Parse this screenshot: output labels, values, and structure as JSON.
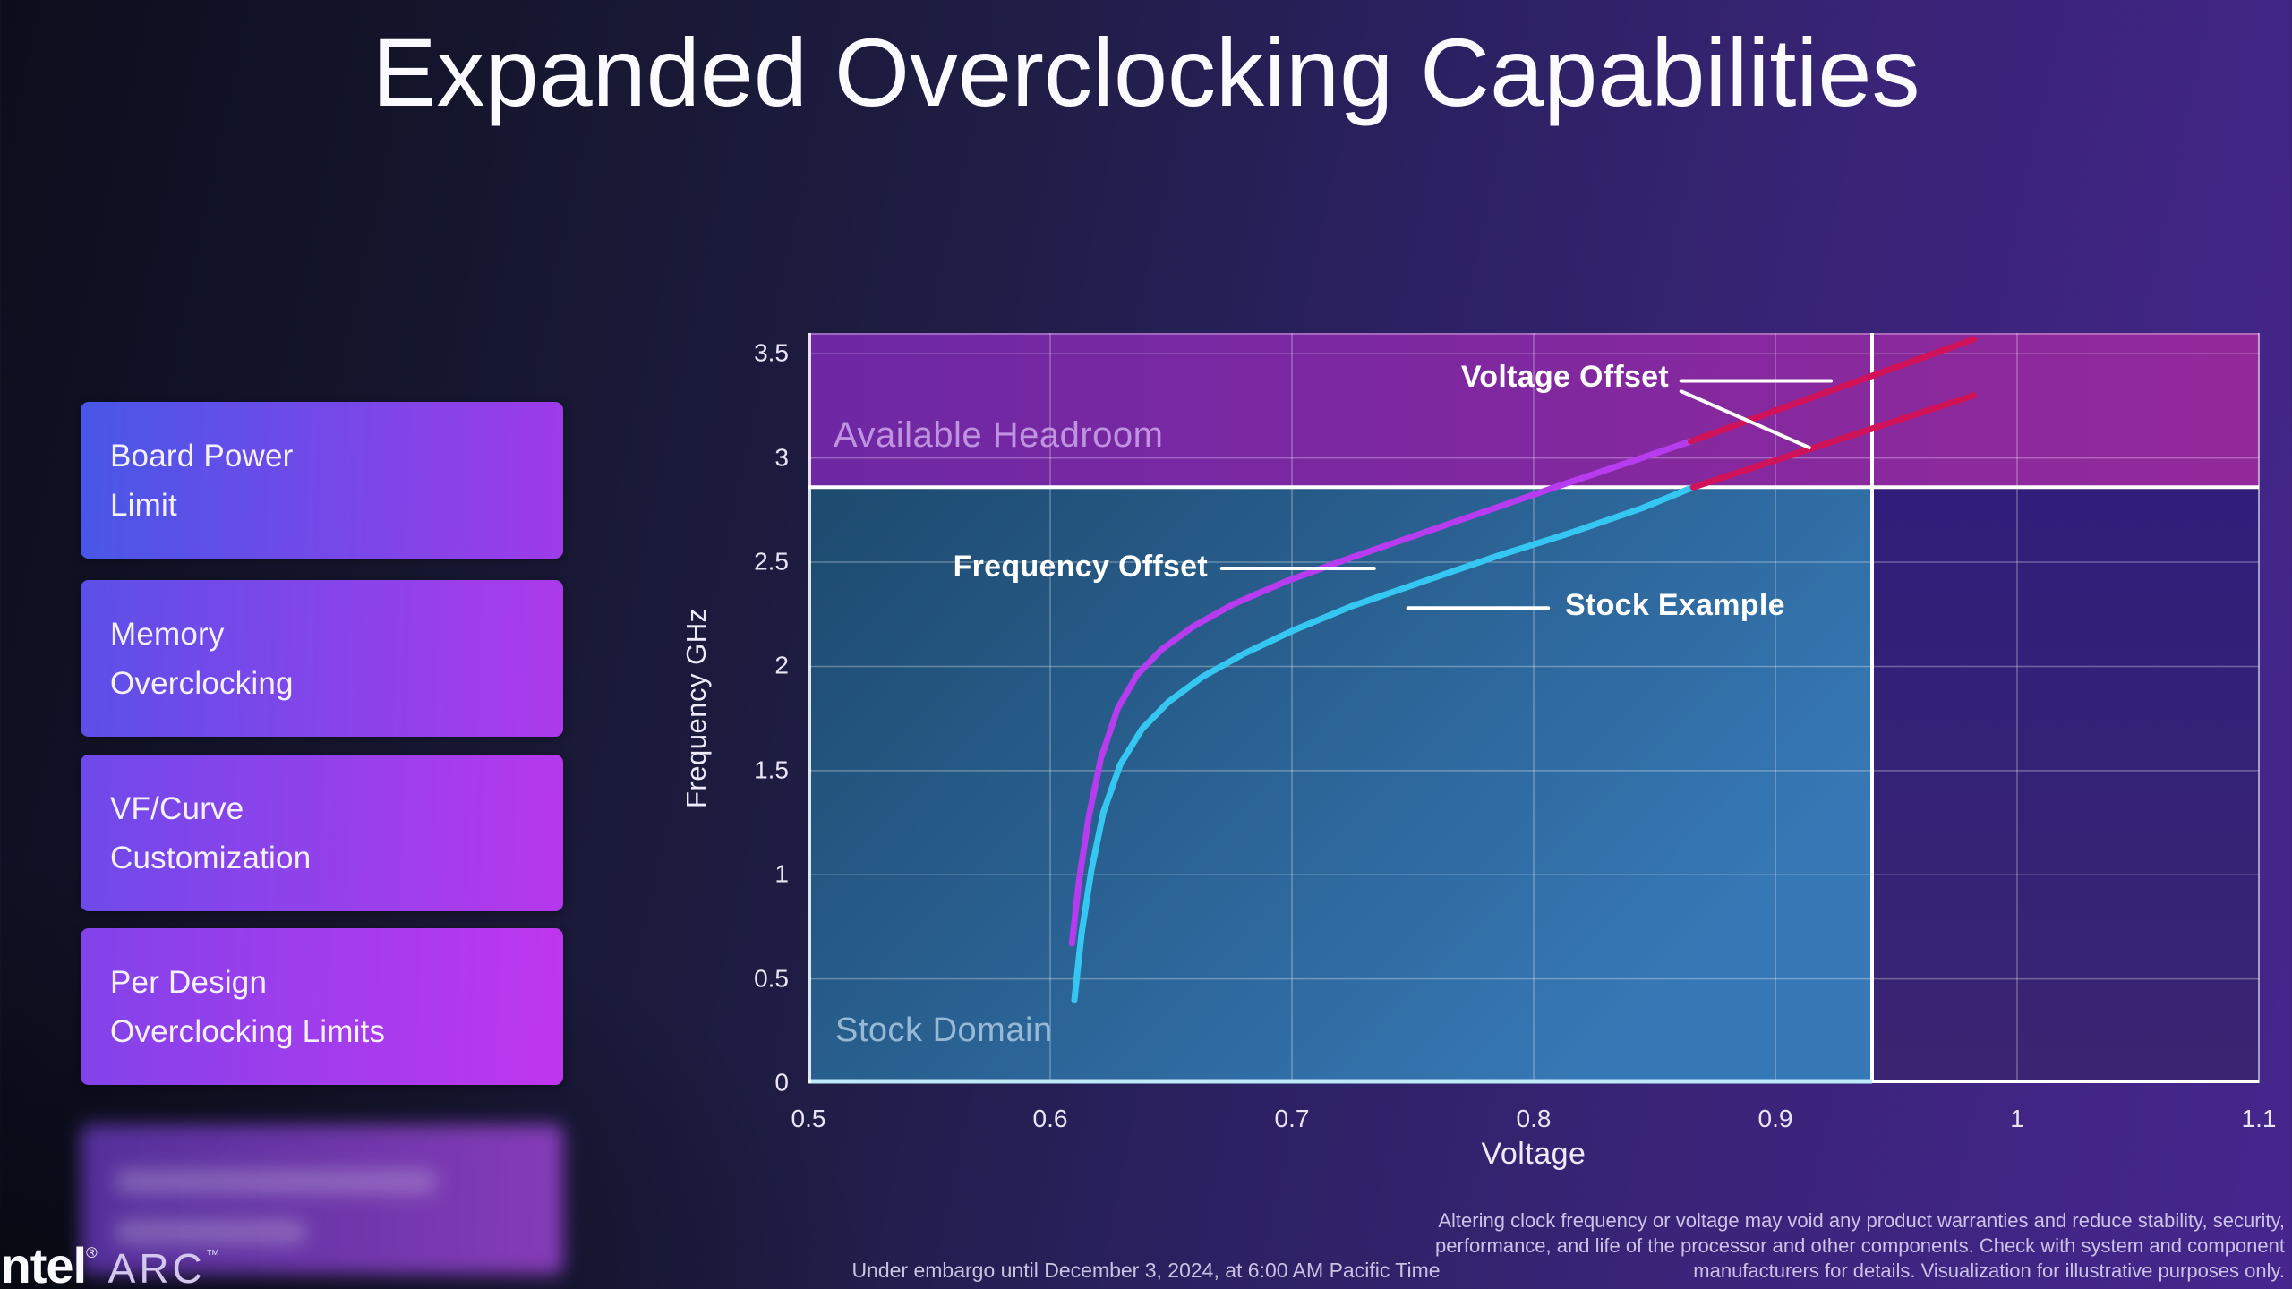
{
  "slide": {
    "title": "Expanded Overclocking Capabilities",
    "embargo_note": "Under embargo until December 3, 2024, at 6:00 AM Pacific Time",
    "disclaimer": "Altering clock frequency or voltage may void any product warranties and reduce stability, security,\nperformance, and life of the processor and other components.  Check with system and component\nmanufacturers for details. Visualization for illustrative purposes only.",
    "logo": {
      "brand": "intel",
      "reg": "®",
      "sub_brand": "ARC",
      "tm": "™"
    }
  },
  "sidebar": {
    "items": [
      {
        "label": "Board Power\nLimit"
      },
      {
        "label": "Memory\nOverclocking"
      },
      {
        "label": "VF/Curve\nCustomization"
      },
      {
        "label": "Per Design\nOverclocking Limits"
      }
    ]
  },
  "chart_data": {
    "type": "line",
    "title": "",
    "xlabel": "Voltage",
    "ylabel": "Frequency GHz",
    "x_range": [
      0.5,
      1.1
    ],
    "y_range": [
      0,
      3.6
    ],
    "x_ticks": [
      0.5,
      0.6,
      0.7,
      0.8,
      0.9,
      1,
      1.1
    ],
    "y_ticks": [
      0,
      0.5,
      1,
      1.5,
      2,
      2.5,
      3,
      3.5
    ],
    "grid": true,
    "legend_position": "none",
    "boundaries": {
      "stock_max_voltage": 0.94,
      "stock_max_frequency": 2.86
    },
    "region_labels": {
      "headroom": "Available Headroom",
      "stock": "Stock Domain"
    },
    "series": [
      {
        "name": "Stock Example",
        "color": "#35c7f2",
        "points": [
          [
            0.61,
            0.4
          ],
          [
            0.613,
            0.72
          ],
          [
            0.617,
            1.02
          ],
          [
            0.622,
            1.3
          ],
          [
            0.629,
            1.53
          ],
          [
            0.638,
            1.7
          ],
          [
            0.649,
            1.83
          ],
          [
            0.663,
            1.95
          ],
          [
            0.68,
            2.06
          ],
          [
            0.7,
            2.17
          ],
          [
            0.725,
            2.29
          ],
          [
            0.755,
            2.41
          ],
          [
            0.785,
            2.53
          ],
          [
            0.815,
            2.64
          ],
          [
            0.845,
            2.76
          ],
          [
            0.866,
            2.86
          ]
        ]
      },
      {
        "name": "Frequency Offset",
        "color": "#b83cef",
        "points": [
          [
            0.609,
            0.67
          ],
          [
            0.612,
            0.98
          ],
          [
            0.616,
            1.28
          ],
          [
            0.621,
            1.56
          ],
          [
            0.628,
            1.8
          ],
          [
            0.636,
            1.96
          ],
          [
            0.646,
            2.08
          ],
          [
            0.659,
            2.19
          ],
          [
            0.676,
            2.3
          ],
          [
            0.698,
            2.41
          ],
          [
            0.724,
            2.52
          ],
          [
            0.754,
            2.64
          ],
          [
            0.784,
            2.76
          ],
          [
            0.814,
            2.88
          ],
          [
            0.842,
            2.99
          ],
          [
            0.865,
            3.08
          ]
        ]
      },
      {
        "name": "Voltage Offset extension of Stock Example",
        "color": "#d01358",
        "points": [
          [
            0.866,
            2.86
          ],
          [
            0.982,
            3.3
          ]
        ]
      },
      {
        "name": "Voltage Offset extension of Frequency Offset",
        "color": "#d01358",
        "points": [
          [
            0.865,
            3.08
          ],
          [
            0.982,
            3.57
          ]
        ]
      }
    ],
    "annotations": [
      {
        "label": "Voltage Offset",
        "callouts": [
          [
            [
              0.861,
              3.37
            ],
            [
              0.923,
              3.37
            ]
          ],
          [
            [
              0.861,
              3.32
            ],
            [
              0.914,
              3.05
            ]
          ]
        ]
      },
      {
        "label": "Frequency Offset",
        "callouts": [
          [
            [
              0.671,
              2.47
            ],
            [
              0.734,
              2.47
            ]
          ]
        ]
      },
      {
        "label": "Stock Example",
        "callouts": [
          [
            [
              0.748,
              2.28
            ],
            [
              0.806,
              2.28
            ]
          ]
        ]
      }
    ],
    "colors": {
      "headroom_left": "#6e28a4",
      "headroom_right": "#93299b",
      "stock_topleft": "#1d4a6e",
      "stock_bottomright": "#3779b7",
      "beyond_top": "#2f1f7a",
      "beyond_bottom": "#3a2572",
      "gridline": "rgba(255,255,255,0.30)",
      "boundary_line": "#ffffff",
      "axis_line": "#ffffff",
      "stock_baseline_accent": "#bee9f8",
      "callout_line": "#ffffff"
    }
  }
}
